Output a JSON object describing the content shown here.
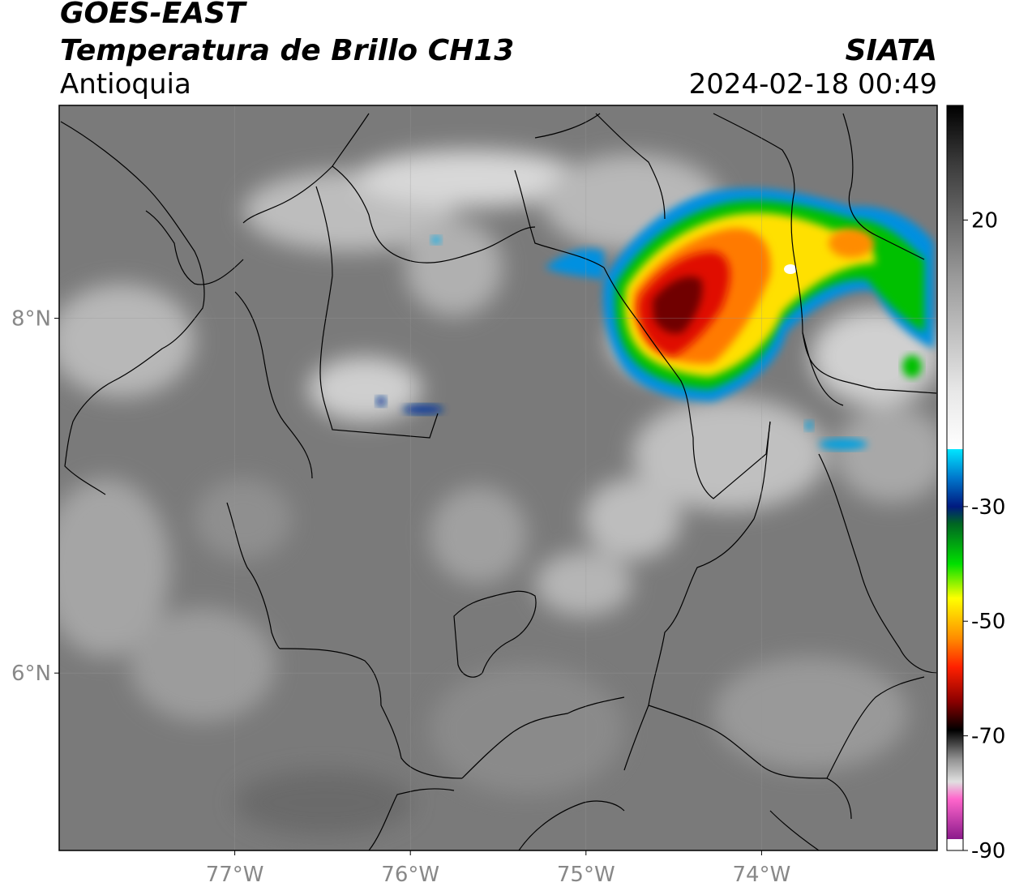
{
  "header": {
    "satellite": "GOES-EAST",
    "product": "Temperatura de Brillo CH13",
    "region": "Antioquia",
    "organization": "SIATA",
    "datetime": "2024-02-18 00:49"
  },
  "map": {
    "lon_range": [
      -78.0,
      -73.0
    ],
    "lat_range": [
      5.0,
      9.2
    ],
    "lon_ticks": [
      {
        "value": -77,
        "label": "77°W"
      },
      {
        "value": -76,
        "label": "76°W"
      },
      {
        "value": -75,
        "label": "75°W"
      },
      {
        "value": -74,
        "label": "74°W"
      }
    ],
    "lat_ticks": [
      {
        "value": 8,
        "label": "8°N"
      },
      {
        "value": 6,
        "label": "6°N"
      }
    ],
    "gridlines": true,
    "base_color": "#7a7a7a"
  },
  "colorbar": {
    "range": [
      -90,
      40
    ],
    "ticks": [
      {
        "value": 20,
        "label": "20"
      },
      {
        "value": -30,
        "label": "-30"
      },
      {
        "value": -50,
        "label": "-50"
      },
      {
        "value": -70,
        "label": "-70"
      },
      {
        "value": -90,
        "label": "-90"
      }
    ],
    "stops": [
      {
        "v": 40,
        "color": "#000000"
      },
      {
        "v": 30,
        "color": "#3a3a3a"
      },
      {
        "v": 10,
        "color": "#9a9a9a"
      },
      {
        "v": -10,
        "color": "#e8e8e8"
      },
      {
        "v": -20,
        "color": "#ffffff"
      },
      {
        "v": -20.01,
        "color": "#00e5ff"
      },
      {
        "v": -25,
        "color": "#0077cc"
      },
      {
        "v": -30,
        "color": "#001a80"
      },
      {
        "v": -33,
        "color": "#006622"
      },
      {
        "v": -40,
        "color": "#00e000"
      },
      {
        "v": -46,
        "color": "#ffff00"
      },
      {
        "v": -53,
        "color": "#ff8c00"
      },
      {
        "v": -58,
        "color": "#ff2000"
      },
      {
        "v": -64,
        "color": "#8b0000"
      },
      {
        "v": -69,
        "color": "#000000"
      },
      {
        "v": -74,
        "color": "#909090"
      },
      {
        "v": -78,
        "color": "#e0e0e0"
      },
      {
        "v": -81,
        "color": "#ff66cc"
      },
      {
        "v": -88,
        "color": "#8b1a8b"
      },
      {
        "v": -88.01,
        "color": "#ffffff"
      },
      {
        "v": -90,
        "color": "#ffffff"
      }
    ]
  }
}
